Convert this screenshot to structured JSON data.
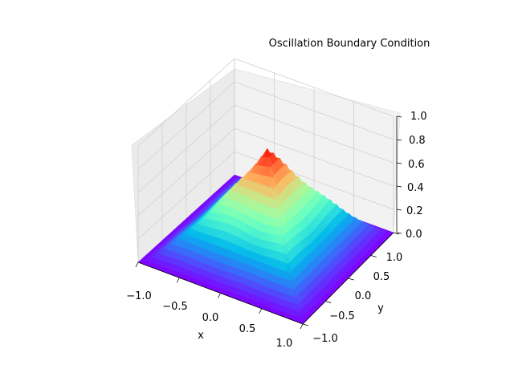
{
  "chart_data": {
    "type": "surface3d",
    "title": "Oscillation Boundary Condition",
    "xlabel": "x",
    "ylabel": "y",
    "zlabel": "",
    "xlim": [
      -1.0,
      1.0
    ],
    "ylim": [
      -1.0,
      1.0
    ],
    "zlim": [
      0.0,
      1.0
    ],
    "x_ticks": [
      "−1.0",
      "−0.5",
      "0.0",
      "0.5",
      "1.0"
    ],
    "y_ticks": [
      "−1.0",
      "−0.5",
      "0.0",
      "0.5",
      "1.0"
    ],
    "z_ticks": [
      "0.0",
      "0.2",
      "0.4",
      "0.6",
      "0.8",
      "1.0"
    ],
    "colormap": "rainbow",
    "grid": true,
    "surface": {
      "shape": "pyramid peak centered at x=0, y=0",
      "peak_value": 0.86,
      "edge_value": 0.0,
      "grid_points": 41
    }
  }
}
